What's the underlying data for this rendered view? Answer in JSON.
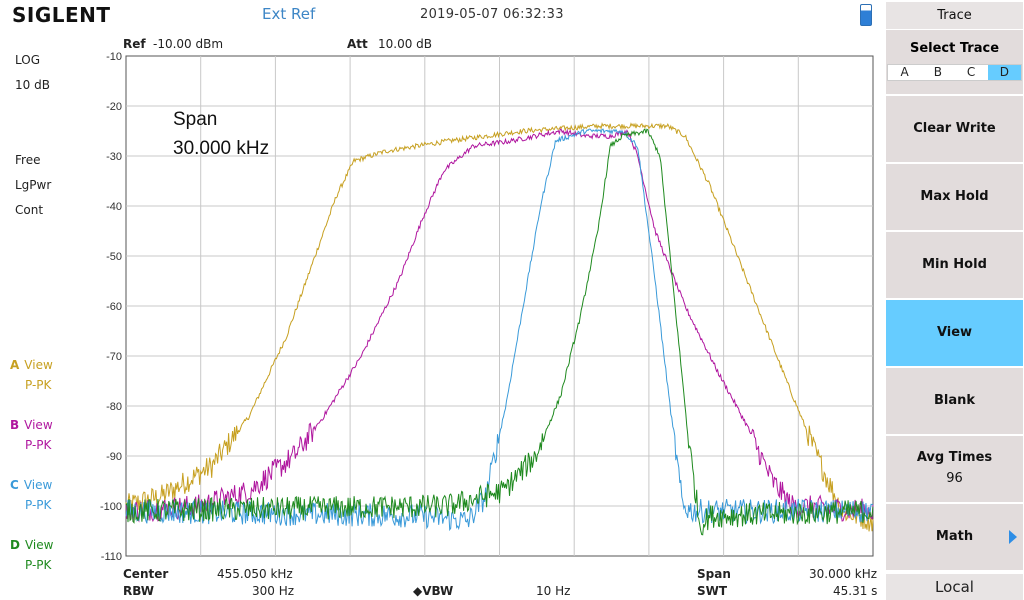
{
  "header": {
    "logo": "SIGLENT",
    "ext_ref": "Ext Ref",
    "datetime": "2019-05-07   06:32:33"
  },
  "params": {
    "ref_label": "Ref",
    "ref_value": "-10.00 dBm",
    "att_label": "Att",
    "att_value": "10.00 dB"
  },
  "left": {
    "scale": "LOG",
    "div": "10 dB",
    "sweep": "Free",
    "avg": "LgPwr",
    "mode": "Cont"
  },
  "traces": [
    {
      "letter": "A",
      "state": "View",
      "det": "P-PK",
      "color": "#c7a021"
    },
    {
      "letter": "B",
      "state": "View",
      "det": "P-PK",
      "color": "#b0179f"
    },
    {
      "letter": "C",
      "state": "View",
      "det": "P-PK",
      "color": "#3a9ad9"
    },
    {
      "letter": "D",
      "state": "View",
      "det": "P-PK",
      "color": "#1f8a1f"
    }
  ],
  "annotation": {
    "line1": "Span",
    "line2": "30.000 kHz"
  },
  "footer": {
    "center_label": "Center",
    "center_value": "455.050 kHz",
    "rbw_label": "RBW",
    "rbw_value": "300 Hz",
    "vbw_label": "◆VBW",
    "vbw_value": "10 Hz",
    "span_label": "Span",
    "span_value": "30.000 kHz",
    "swt_label": "SWT",
    "swt_value": "45.31 s"
  },
  "panel": {
    "title": "Trace",
    "select_trace": "Select Trace",
    "select_options": [
      "A",
      "B",
      "C",
      "D"
    ],
    "selected": "D",
    "buttons": [
      {
        "label": "Clear Write",
        "sub": "",
        "active": false
      },
      {
        "label": "Max Hold",
        "sub": "",
        "active": false
      },
      {
        "label": "Min Hold",
        "sub": "",
        "active": false
      },
      {
        "label": "View",
        "sub": "",
        "active": true
      },
      {
        "label": "Blank",
        "sub": "",
        "active": false
      },
      {
        "label": "Avg Times",
        "sub": "96",
        "active": false
      },
      {
        "label": "Math",
        "sub": "",
        "active": false
      }
    ],
    "local": "Local"
  },
  "chart_data": {
    "type": "line",
    "ylim": [
      -110,
      -10
    ],
    "yticks": [
      "-10",
      "-20",
      "-30",
      "-40",
      "-50",
      "-60",
      "-70",
      "-80",
      "-90",
      "-100",
      "-110"
    ],
    "x_units": "kHz",
    "xlim": [
      440.05,
      470.05
    ],
    "grid": true,
    "noise_floor": -101,
    "series": [
      {
        "letter": "A",
        "color": "#c7a021",
        "points": [
          [
            440.05,
            -100
          ],
          [
            441.5,
            -98
          ],
          [
            443.5,
            -92
          ],
          [
            445,
            -82
          ],
          [
            446.5,
            -66
          ],
          [
            447.5,
            -52
          ],
          [
            448.5,
            -38
          ],
          [
            449.2,
            -31
          ],
          [
            450.5,
            -29
          ],
          [
            453,
            -27
          ],
          [
            456,
            -25
          ],
          [
            459,
            -24
          ],
          [
            461.8,
            -24
          ],
          [
            462.5,
            -26
          ],
          [
            463.5,
            -36
          ],
          [
            465,
            -55
          ],
          [
            466.5,
            -74
          ],
          [
            467.8,
            -90
          ],
          [
            468.8,
            -101
          ],
          [
            470.05,
            -103
          ]
        ]
      },
      {
        "letter": "B",
        "color": "#b0179f",
        "points": [
          [
            440.05,
            -101
          ],
          [
            443,
            -100
          ],
          [
            445,
            -97
          ],
          [
            446.8,
            -90
          ],
          [
            448,
            -82
          ],
          [
            449.5,
            -70
          ],
          [
            451,
            -55
          ],
          [
            452,
            -42
          ],
          [
            452.8,
            -33
          ],
          [
            454,
            -28
          ],
          [
            455.5,
            -27
          ],
          [
            456.5,
            -26
          ],
          [
            457.5,
            -25
          ],
          [
            458.5,
            -26
          ],
          [
            459.5,
            -26
          ],
          [
            460.2,
            -25
          ],
          [
            460.6,
            -30
          ],
          [
            461.3,
            -45
          ],
          [
            462.5,
            -60
          ],
          [
            463.8,
            -73
          ],
          [
            465,
            -84
          ],
          [
            466,
            -95
          ],
          [
            466.8,
            -100
          ],
          [
            470.05,
            -101
          ]
        ]
      },
      {
        "letter": "C",
        "color": "#3a9ad9",
        "points": [
          [
            440.05,
            -101
          ],
          [
            452,
            -102
          ],
          [
            453.8,
            -103
          ],
          [
            454.5,
            -98
          ],
          [
            455.3,
            -80
          ],
          [
            456,
            -60
          ],
          [
            456.7,
            -40
          ],
          [
            457.3,
            -27
          ],
          [
            458.5,
            -25
          ],
          [
            460,
            -25
          ],
          [
            460.6,
            -28
          ],
          [
            461.3,
            -55
          ],
          [
            461.9,
            -80
          ],
          [
            462.4,
            -100
          ],
          [
            462.8,
            -101
          ],
          [
            470.05,
            -101
          ]
        ]
      },
      {
        "letter": "D",
        "color": "#1f8a1f",
        "points": [
          [
            440.05,
            -101
          ],
          [
            453,
            -100
          ],
          [
            455.2,
            -97
          ],
          [
            456.5,
            -90
          ],
          [
            457.5,
            -78
          ],
          [
            458.3,
            -62
          ],
          [
            459,
            -45
          ],
          [
            459.5,
            -28
          ],
          [
            460,
            -26
          ],
          [
            461,
            -25
          ],
          [
            461.5,
            -30
          ],
          [
            462,
            -55
          ],
          [
            462.6,
            -85
          ],
          [
            463.1,
            -104
          ],
          [
            463.5,
            -102
          ],
          [
            470.05,
            -101
          ]
        ]
      }
    ]
  }
}
